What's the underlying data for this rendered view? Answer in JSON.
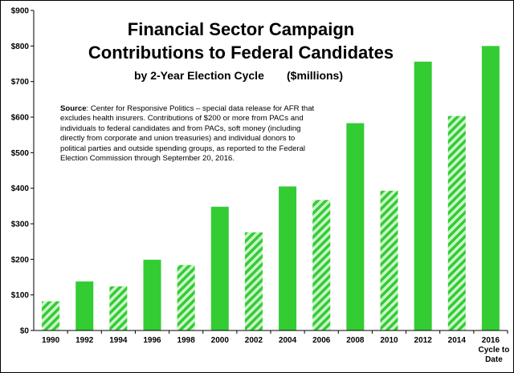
{
  "chart_data": {
    "type": "bar",
    "title": "Financial Sector Campaign Contributions to Federal Candidates",
    "title_line1": "Financial Sector Campaign",
    "title_line2": "Contributions to Federal Candidates",
    "subtitle": "by 2-Year Election Cycle",
    "unit_label": "($millions)",
    "categories": [
      "1990",
      "1992",
      "1994",
      "1996",
      "1998",
      "2000",
      "2002",
      "2004",
      "2006",
      "2008",
      "2010",
      "2012",
      "2014",
      "2016"
    ],
    "category_sublabels": [
      "",
      "",
      "",
      "",
      "",
      "",
      "",
      "",
      "",
      "",
      "",
      "",
      "",
      "Cycle to Date"
    ],
    "values": [
      82,
      138,
      124,
      199,
      184,
      348,
      276,
      405,
      367,
      583,
      393,
      756,
      603,
      800
    ],
    "bar_style": [
      "hatched",
      "solid",
      "hatched",
      "solid",
      "hatched",
      "solid",
      "hatched",
      "solid",
      "hatched",
      "solid",
      "hatched",
      "solid",
      "hatched",
      "solid"
    ],
    "yticks": [
      "$0",
      "$100",
      "$200",
      "$300",
      "$400",
      "$500",
      "$600",
      "$700",
      "$800",
      "$900"
    ],
    "ylim": [
      0,
      900
    ],
    "grid": false,
    "colors": {
      "bar": "#33cc33",
      "hatch_light": "#ccf5cc"
    },
    "note": {
      "label": "Source",
      "text": ": Center for Responsive Politics  –  special data release for AFR that excludes health insurers. Contributions of $200 or more from PACs and individuals to federal candidates and from PACs, soft money (including directly from corporate and union treasuries) and individual donors to political parties and outside spending groups, as reported to the Federal Election Commission through September 20, 2016."
    }
  }
}
